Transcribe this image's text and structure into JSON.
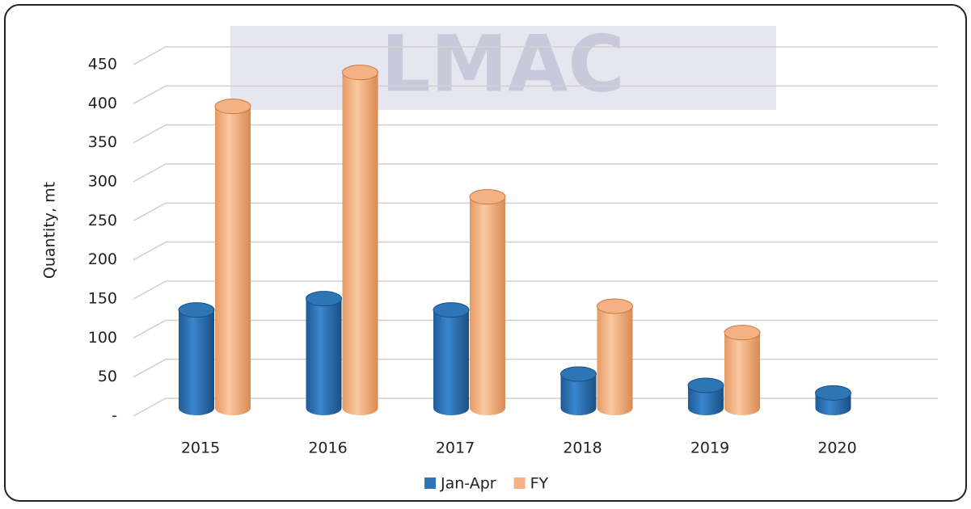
{
  "chart_data": {
    "type": "bar3d",
    "watermark": "LMAC",
    "y_label": "Quantity, mt",
    "categories": [
      "2015",
      "2016",
      "2017",
      "2018",
      "2019",
      "2020"
    ],
    "series": [
      {
        "name": "Jan-Apr",
        "color": "#2e75b6",
        "values": [
          130,
          145,
          130,
          45,
          30,
          20
        ]
      },
      {
        "name": "FY",
        "color": "#f4b183",
        "values": [
          400,
          445,
          280,
          135,
          100,
          null
        ]
      }
    ],
    "ylim": [
      0,
      450
    ],
    "yticks": [
      {
        "value": 0,
        "label": "-"
      },
      50,
      100,
      150,
      200,
      250,
      300,
      350,
      400,
      450
    ],
    "grid": true,
    "legend": "bottom"
  }
}
